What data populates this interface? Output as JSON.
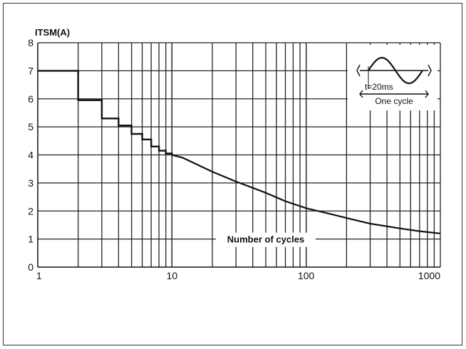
{
  "chart_data": {
    "type": "line",
    "title": "",
    "ylabel": "ITSM(A)",
    "xlabel": "Number of cycles",
    "x_scale": "log",
    "xlim": [
      1,
      1000
    ],
    "ylim": [
      0,
      8
    ],
    "x_ticks": [
      "1",
      "10",
      "100",
      "1000"
    ],
    "y_ticks": [
      "0",
      "1",
      "2",
      "3",
      "4",
      "5",
      "6",
      "7",
      "8"
    ],
    "grid": true,
    "series": [
      {
        "name": "",
        "step_points": [
          [
            1,
            7.0
          ],
          [
            2,
            7.0
          ],
          [
            2,
            5.95
          ],
          [
            3,
            5.95
          ],
          [
            3,
            5.3
          ],
          [
            4,
            5.3
          ],
          [
            4,
            5.05
          ],
          [
            5,
            5.05
          ],
          [
            5,
            4.75
          ],
          [
            6,
            4.75
          ],
          [
            6,
            4.55
          ],
          [
            7,
            4.55
          ],
          [
            7,
            4.3
          ],
          [
            8,
            4.3
          ],
          [
            8,
            4.15
          ],
          [
            9,
            4.15
          ],
          [
            9,
            4.05
          ],
          [
            10,
            4.05
          ],
          [
            10,
            4.0
          ]
        ],
        "curve_points": [
          [
            10,
            4.0
          ],
          [
            12,
            3.9
          ],
          [
            20,
            3.4
          ],
          [
            30,
            3.05
          ],
          [
            50,
            2.65
          ],
          [
            70,
            2.35
          ],
          [
            100,
            2.1
          ],
          [
            150,
            1.9
          ],
          [
            200,
            1.75
          ],
          [
            300,
            1.55
          ],
          [
            500,
            1.38
          ],
          [
            700,
            1.28
          ],
          [
            1000,
            1.2
          ]
        ]
      }
    ],
    "inset": {
      "period_label": "t=20ms",
      "cycle_label": "One cycle"
    }
  }
}
